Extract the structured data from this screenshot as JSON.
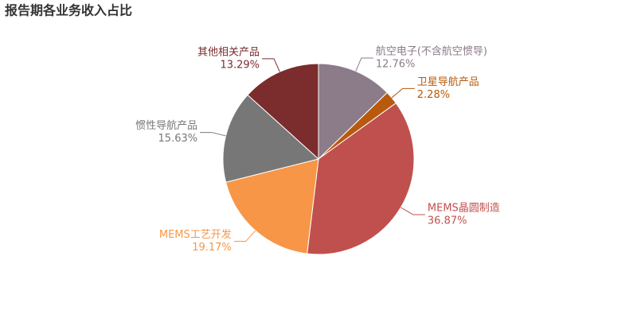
{
  "chart_data": {
    "type": "pie",
    "title": "报告期各业务收入占比",
    "categories": [
      "航空电子(不含航空惯导)",
      "卫星导航产品",
      "MEMS晶圆制造",
      "MEMS工艺开发",
      "惯性导航产品",
      "其他相关产品"
    ],
    "values": [
      12.76,
      2.28,
      36.87,
      19.17,
      15.63,
      13.29
    ],
    "value_labels": [
      "12.76%",
      "2.28%",
      "36.87%",
      "19.17%",
      "15.63%",
      "13.29%"
    ],
    "colors": [
      "#8c7b89",
      "#b85a0e",
      "#c0504d",
      "#f79646",
      "#777777",
      "#7b2c2c"
    ]
  }
}
